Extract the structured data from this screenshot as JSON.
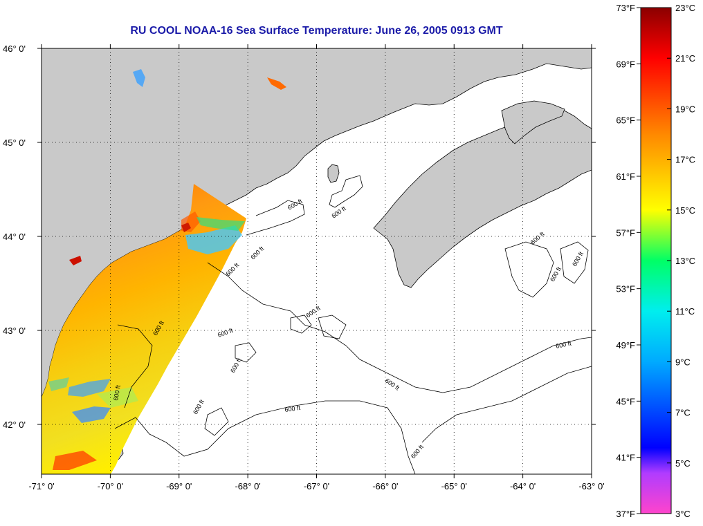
{
  "title": "RU COOL  NOAA-16  Sea Surface Temperature:  June 26, 2005 0913 GMT",
  "map": {
    "lat_labels": [
      "46° 0'",
      "45° 0'",
      "44° 0'",
      "43° 0'",
      "42° 0'"
    ],
    "lon_labels": [
      "-71° 0'",
      "-70° 0'",
      "-69° 0'",
      "-68° 0'",
      "-67° 0'",
      "-66° 0'",
      "-65° 0'",
      "-64° 0'",
      "-63° 0'"
    ],
    "lat_values": [
      46,
      45,
      44,
      43,
      42
    ],
    "lon_values": [
      -71,
      -70,
      -69,
      -68,
      -67,
      -66,
      -65,
      -64,
      -63
    ],
    "bathymetry_label": "600 ft",
    "land_color": "#c9c9c9",
    "water_color": "#ffffff"
  },
  "colorbar": {
    "fahrenheit_labels": [
      "73°F",
      "69°F",
      "65°F",
      "61°F",
      "57°F",
      "53°F",
      "49°F",
      "45°F",
      "41°F",
      "37°F"
    ],
    "celsius_labels": [
      "23°C",
      "21°C",
      "19°C",
      "17°C",
      "15°C",
      "13°C",
      "11°C",
      "9°C",
      "7°C",
      "5°C",
      "3°C"
    ],
    "range_c": [
      3,
      23
    ],
    "range_f": [
      37,
      73
    ],
    "gradient_colors": [
      "#ff44cc",
      "#9a34ff",
      "#0000ff",
      "#00aaff",
      "#00eeee",
      "#00ff66",
      "#ffff00",
      "#ff8800",
      "#ff0000",
      "#8b0000"
    ]
  }
}
